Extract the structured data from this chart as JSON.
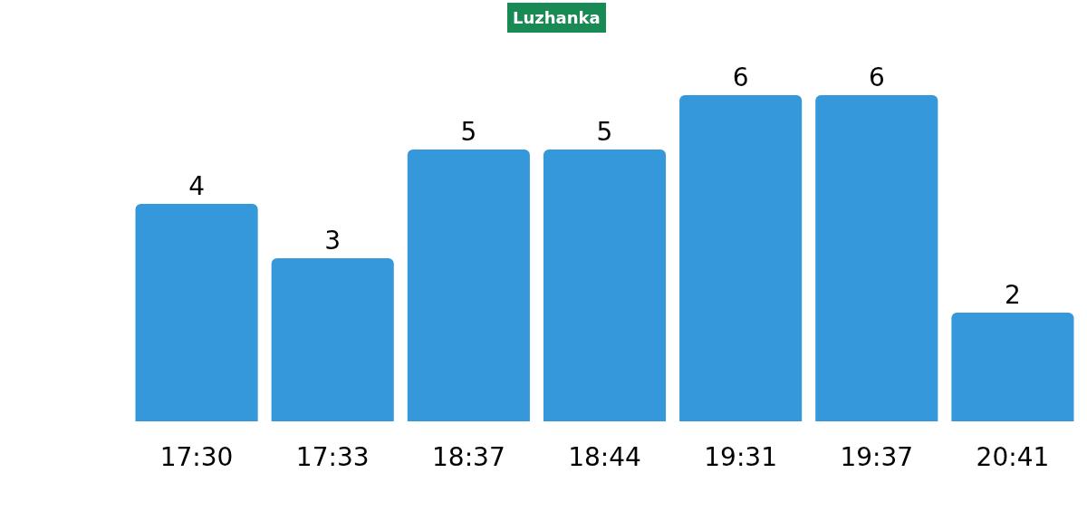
{
  "chart_data": {
    "type": "bar",
    "title": "Luzhanka",
    "categories": [
      "17:30",
      "17:33",
      "18:37",
      "18:44",
      "19:31",
      "19:37",
      "20:41"
    ],
    "values": [
      4,
      3,
      5,
      5,
      6,
      6,
      2
    ],
    "color": "#3598db",
    "data_labels": true,
    "grid": false,
    "legend": false
  }
}
